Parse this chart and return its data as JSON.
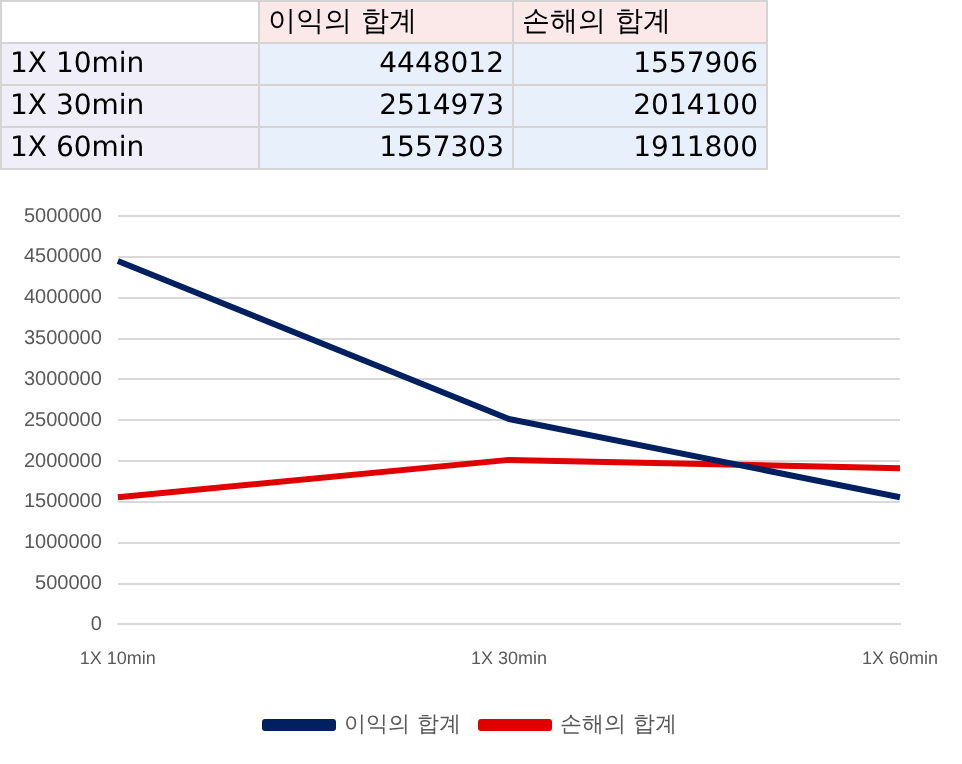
{
  "chart_data": [
    {
      "type": "heatmap",
      "categories": [
        "이익의 합계",
        "손해의 합계"
      ],
      "y_categories": [
        "1X 10min",
        "1X 30min",
        "1X 60min"
      ],
      "cells": [
        [
          4448012,
          1557906
        ],
        [
          2514973,
          2014100
        ],
        [
          1557303,
          1911800
        ]
      ],
      "data_labels": true
    },
    {
      "type": "line",
      "categories": [
        "1X 10min",
        "1X 30min",
        "1X 60min"
      ],
      "series": [
        {
          "name": "이익의 합계",
          "color": "#002060",
          "values": [
            4448012,
            2514973,
            1557303
          ]
        },
        {
          "name": "손해의 합계",
          "color": "#e00000",
          "values": [
            1557906,
            2014100,
            1911800
          ]
        }
      ],
      "ylim": [
        0,
        5000000
      ],
      "yticks": [
        0,
        500000,
        1000000,
        1500000,
        2000000,
        2500000,
        3000000,
        3500000,
        4000000,
        4500000,
        5000000
      ],
      "grid": "y",
      "legend": "bottom",
      "marker": "none",
      "line_style": "solid"
    }
  ]
}
